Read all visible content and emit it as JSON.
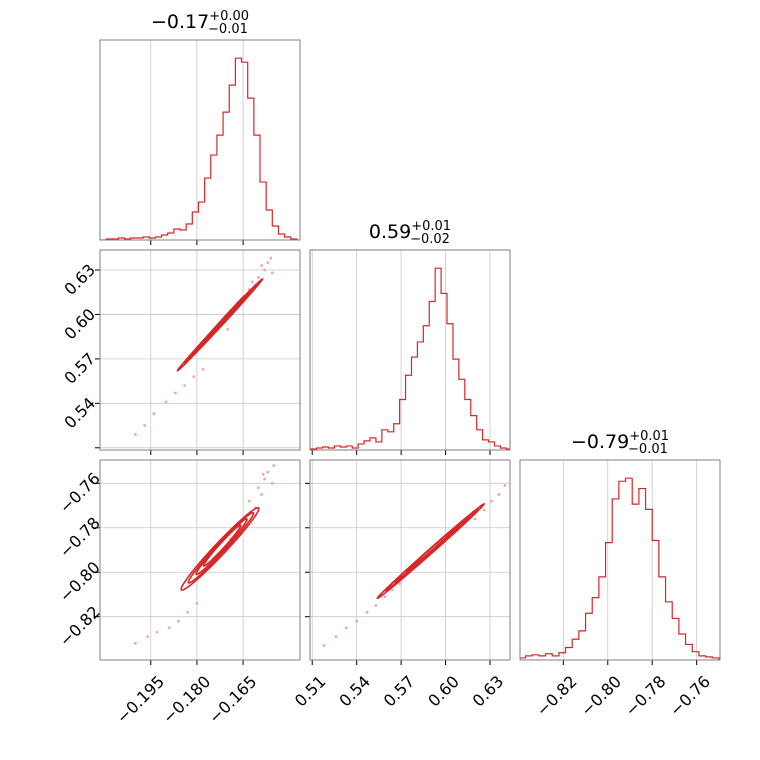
{
  "chart_data": {
    "type": "corner",
    "parameters": [
      {
        "id": "p1",
        "title": {
          "median": "−0.17",
          "plus": "+0.00",
          "minus": "−0.01"
        },
        "range": [
          -0.2115,
          -0.1465
        ],
        "ticks": [
          -0.195,
          -0.18,
          -0.165
        ],
        "tick_labels": [
          "−0.195",
          "−0.180",
          "−0.165"
        ],
        "hist": {
          "centers": [
            -0.2105,
            -0.2085,
            -0.2065,
            -0.2045,
            -0.2025,
            -0.2005,
            -0.1985,
            -0.1965,
            -0.1945,
            -0.1925,
            -0.1905,
            -0.1885,
            -0.1865,
            -0.1845,
            -0.1825,
            -0.1805,
            -0.1785,
            -0.1765,
            -0.1745,
            -0.1725,
            -0.1705,
            -0.1685,
            -0.1665,
            -0.1645,
            -0.1625,
            -0.1605,
            -0.1585,
            -0.1565,
            -0.1545,
            -0.1525,
            -0.1505,
            -0.1485
          ],
          "counts": [
            0,
            1,
            1,
            2,
            1,
            2,
            2,
            3,
            2,
            3,
            5,
            7,
            11,
            10,
            16,
            28,
            38,
            62,
            85,
            105,
            128,
            155,
            182,
            178,
            142,
            105,
            58,
            30,
            14,
            6,
            3,
            1
          ]
        }
      },
      {
        "id": "p2",
        "title": {
          "median": "0.59",
          "plus": "+0.01",
          "minus": "−0.02"
        },
        "range": [
          0.5085,
          0.6435
        ],
        "ticks": [
          0.51,
          0.54,
          0.57,
          0.6,
          0.63
        ],
        "tick_labels": [
          "0.51",
          "0.54",
          "0.57",
          "0.60",
          "0.63"
        ],
        "hist": {
          "centers": [
            0.511,
            0.515,
            0.519,
            0.523,
            0.527,
            0.531,
            0.535,
            0.539,
            0.543,
            0.547,
            0.551,
            0.555,
            0.559,
            0.563,
            0.567,
            0.571,
            0.575,
            0.579,
            0.583,
            0.587,
            0.591,
            0.595,
            0.599,
            0.603,
            0.607,
            0.611,
            0.615,
            0.619,
            0.623,
            0.627,
            0.631,
            0.635,
            0.639,
            0.643
          ],
          "counts": [
            1,
            2,
            3,
            2,
            4,
            3,
            4,
            2,
            6,
            9,
            12,
            8,
            20,
            18,
            26,
            50,
            74,
            92,
            107,
            123,
            147,
            180,
            155,
            125,
            90,
            70,
            50,
            34,
            20,
            10,
            8,
            4,
            2,
            1
          ]
        }
      },
      {
        "id": "p3",
        "title": {
          "median": "−0.79",
          "plus": "+0.01",
          "minus": "−0.01"
        },
        "range": [
          -0.8395,
          -0.7495
        ],
        "ticks": [
          -0.82,
          -0.8,
          -0.78,
          -0.76
        ],
        "tick_labels": [
          "−0.82",
          "−0.80",
          "−0.78",
          "−0.76"
        ],
        "hist": {
          "centers": [
            -0.8385,
            -0.8355,
            -0.8325,
            -0.8295,
            -0.8265,
            -0.8235,
            -0.8205,
            -0.8175,
            -0.8145,
            -0.8115,
            -0.8085,
            -0.8055,
            -0.8025,
            -0.7995,
            -0.7965,
            -0.7935,
            -0.7905,
            -0.7875,
            -0.7845,
            -0.7815,
            -0.7785,
            -0.7755,
            -0.7725,
            -0.7695,
            -0.7665,
            -0.7635,
            -0.7605,
            -0.7575,
            -0.7545,
            -0.7515
          ],
          "counts": [
            2,
            4,
            5,
            4,
            6,
            4,
            7,
            12,
            20,
            28,
            45,
            60,
            80,
            113,
            155,
            172,
            175,
            150,
            165,
            145,
            115,
            80,
            56,
            40,
            25,
            15,
            8,
            4,
            3,
            2
          ]
        }
      }
    ],
    "pairs": [
      {
        "row": 1,
        "col": 0,
        "xparam": "p1",
        "yparam": "p2",
        "y_ticks": [
          0.54,
          0.57,
          0.6,
          0.63
        ],
        "y_tick_labels": [
          "0.54",
          "0.57",
          "0.60",
          "0.63"
        ],
        "scatter": {
          "x": [
            -0.2,
            -0.197,
            -0.194,
            -0.19,
            -0.187,
            -0.184,
            -0.181,
            -0.178,
            -0.17,
            -0.163,
            -0.161,
            -0.16,
            -0.158,
            -0.157,
            -0.159,
            -0.162,
            -0.156,
            -0.1555
          ],
          "y": [
            0.519,
            0.525,
            0.533,
            0.541,
            0.547,
            0.552,
            0.558,
            0.563,
            0.59,
            0.617,
            0.62,
            0.625,
            0.63,
            0.635,
            0.633,
            0.622,
            0.638,
            0.628
          ]
        },
        "contours": [
          {
            "center": [
              -0.1725,
              0.593
            ],
            "semi_major": [
              0.0138,
              0.0309
            ],
            "semi_minor": [
              -0.0003,
              0.0011
            ]
          },
          {
            "center": [
              -0.1722,
              0.594
            ],
            "semi_major": [
              0.0118,
              0.0265
            ],
            "semi_minor": [
              -0.0002,
              0.0008
            ]
          },
          {
            "center": [
              -0.172,
              0.595
            ],
            "semi_major": [
              0.0095,
              0.0215
            ],
            "semi_minor": [
              -0.00015,
              0.0006
            ]
          },
          {
            "center": [
              -0.1718,
              0.596
            ],
            "semi_major": [
              0.0072,
              0.0165
            ],
            "semi_minor": [
              -0.0001,
              0.0004
            ]
          }
        ]
      },
      {
        "row": 2,
        "col": 0,
        "xparam": "p1",
        "yparam": "p3",
        "y_ticks": [
          -0.82,
          -0.8,
          -0.78,
          -0.76
        ],
        "y_tick_labels": [
          "−0.82",
          "−0.80",
          "−0.78",
          "−0.76"
        ],
        "scatter": {
          "x": [
            -0.2,
            -0.196,
            -0.193,
            -0.189,
            -0.186,
            -0.183,
            -0.18,
            -0.169,
            -0.163,
            -0.16,
            -0.158,
            -0.157,
            -0.155,
            -0.159,
            -0.161,
            -0.1555,
            -0.1585
          ],
          "y": [
            -0.832,
            -0.829,
            -0.827,
            -0.825,
            -0.822,
            -0.818,
            -0.814,
            -0.785,
            -0.768,
            -0.762,
            -0.758,
            -0.755,
            -0.752,
            -0.765,
            -0.771,
            -0.76,
            -0.756
          ]
        },
        "contours": [
          {
            "center": [
              -0.1725,
              -0.7895
            ],
            "semi_major": [
              0.0125,
              0.0185
            ],
            "semi_minor": [
              -0.0018,
              0.0012
            ]
          },
          {
            "center": [
              -0.1722,
              -0.789
            ],
            "semi_major": [
              0.0105,
              0.0158
            ],
            "semi_minor": [
              -0.0014,
              0.0009
            ]
          },
          {
            "center": [
              -0.172,
              -0.7885
            ],
            "semi_major": [
              0.0082,
              0.0125
            ],
            "semi_minor": [
              -0.0011,
              0.0007
            ]
          },
          {
            "center": [
              -0.1718,
              -0.788
            ],
            "semi_major": [
              0.006,
              0.0092
            ],
            "semi_minor": [
              -0.0008,
              0.0005
            ]
          }
        ]
      },
      {
        "row": 2,
        "col": 1,
        "xparam": "p2",
        "yparam": "p3",
        "y_ticks": [],
        "y_tick_labels": [],
        "scatter": {
          "x": [
            0.518,
            0.526,
            0.533,
            0.54,
            0.547,
            0.553,
            0.559,
            0.564,
            0.569,
            0.62,
            0.626,
            0.631,
            0.636,
            0.64
          ],
          "y": [
            -0.833,
            -0.829,
            -0.825,
            -0.822,
            -0.818,
            -0.815,
            -0.811,
            -0.808,
            -0.805,
            -0.776,
            -0.772,
            -0.768,
            -0.765,
            -0.761
          ]
        },
        "contours": [
          {
            "center": [
              0.59,
              -0.7905
            ],
            "semi_major": [
              0.036,
              0.0212
            ],
            "semi_minor": [
              -0.0006,
              0.001
            ]
          },
          {
            "center": [
              0.5905,
              -0.79
            ],
            "semi_major": [
              0.031,
              0.0182
            ],
            "semi_minor": [
              -0.0005,
              0.0008
            ]
          },
          {
            "center": [
              0.591,
              -0.7895
            ],
            "semi_major": [
              0.025,
              0.0148
            ],
            "semi_minor": [
              -0.0004,
              0.0006
            ]
          },
          {
            "center": [
              0.5915,
              -0.789
            ],
            "semi_major": [
              0.018,
              0.0107
            ],
            "semi_minor": [
              -0.0003,
              0.0004
            ]
          }
        ]
      }
    ],
    "grid": true,
    "color": "#d62728",
    "scatter_color": "#f4a6a6"
  }
}
